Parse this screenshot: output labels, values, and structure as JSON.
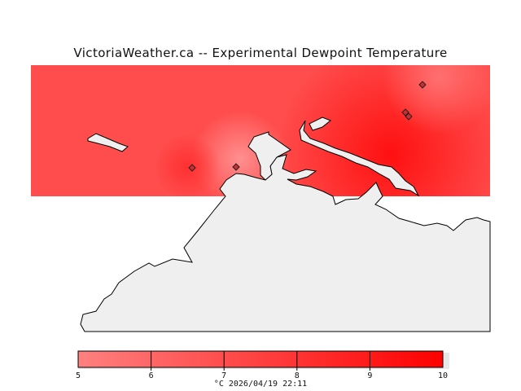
{
  "title": "VictoriaWeather.ca -- Experimental Dewpoint Temperature",
  "legend": {
    "ticks": [
      "5",
      "6",
      "7",
      "8",
      "9",
      "10"
    ],
    "tick_values": [
      5,
      6,
      7,
      8,
      9,
      10
    ],
    "min": 5,
    "max": 10,
    "unit_and_time": "°C  2026/04/19 22:11",
    "color_low": "#ff8080",
    "color_high": "#ff0000"
  },
  "colors": {
    "land": "#efefef",
    "coastline": "#000000",
    "station_marker": "station-diamond-icon"
  },
  "station_count": 5
}
